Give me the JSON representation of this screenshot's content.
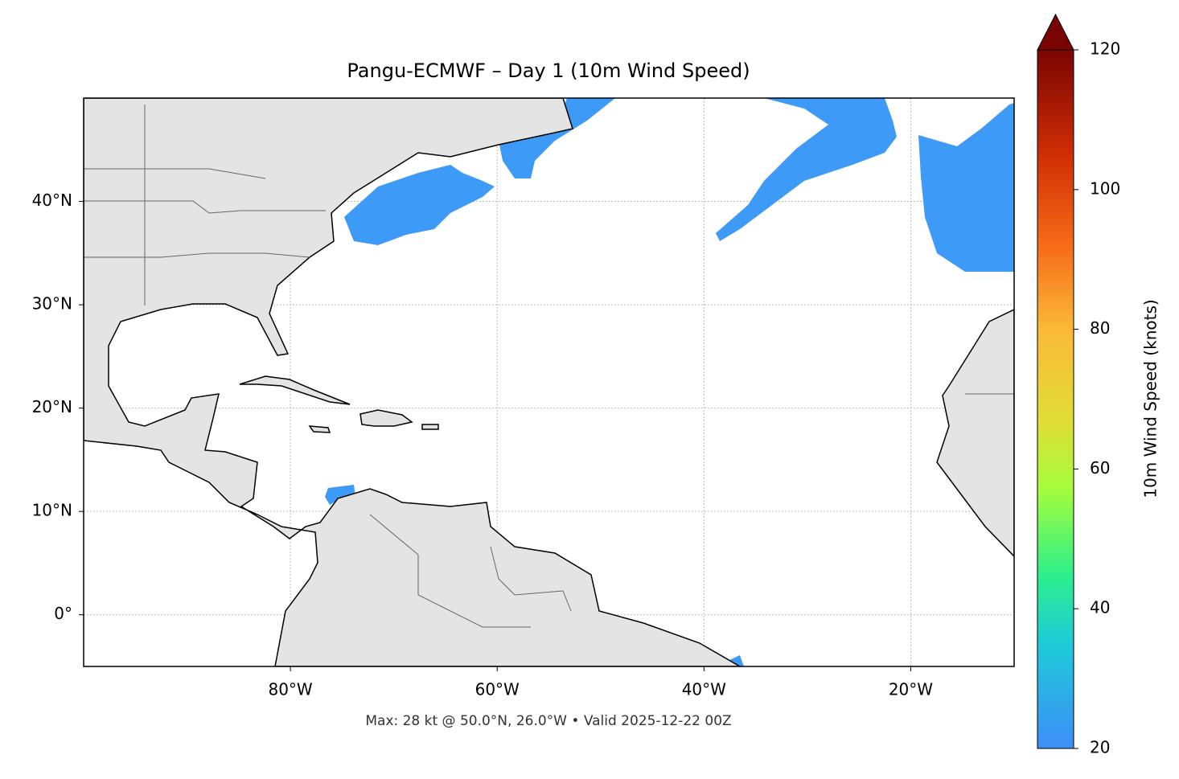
{
  "chart_data": {
    "type": "map",
    "title": "Pangu-ECMWF – Day 1 (10m Wind Speed)",
    "xlim": [
      -100,
      -10
    ],
    "ylim": [
      -5,
      50
    ],
    "xticks": [
      {
        "value": -80,
        "label": "80°W"
      },
      {
        "value": -60,
        "label": "60°W"
      },
      {
        "value": -40,
        "label": "40°W"
      },
      {
        "value": -20,
        "label": "20°W"
      }
    ],
    "yticks": [
      {
        "value": 0,
        "label": "0°"
      },
      {
        "value": 10,
        "label": "10°N"
      },
      {
        "value": 20,
        "label": "20°N"
      },
      {
        "value": 30,
        "label": "30°N"
      },
      {
        "value": 40,
        "label": "40°N"
      }
    ],
    "grid": true,
    "annotation": "Max: 28 kt @ 50.0°N, 26.0°W • Valid 2025-12-22 00Z",
    "colorbar": {
      "label": "10m Wind Speed (knots)",
      "lim": [
        20,
        120
      ],
      "ticks": [
        20,
        40,
        60,
        80,
        100,
        120
      ],
      "extend": "max"
    }
  }
}
